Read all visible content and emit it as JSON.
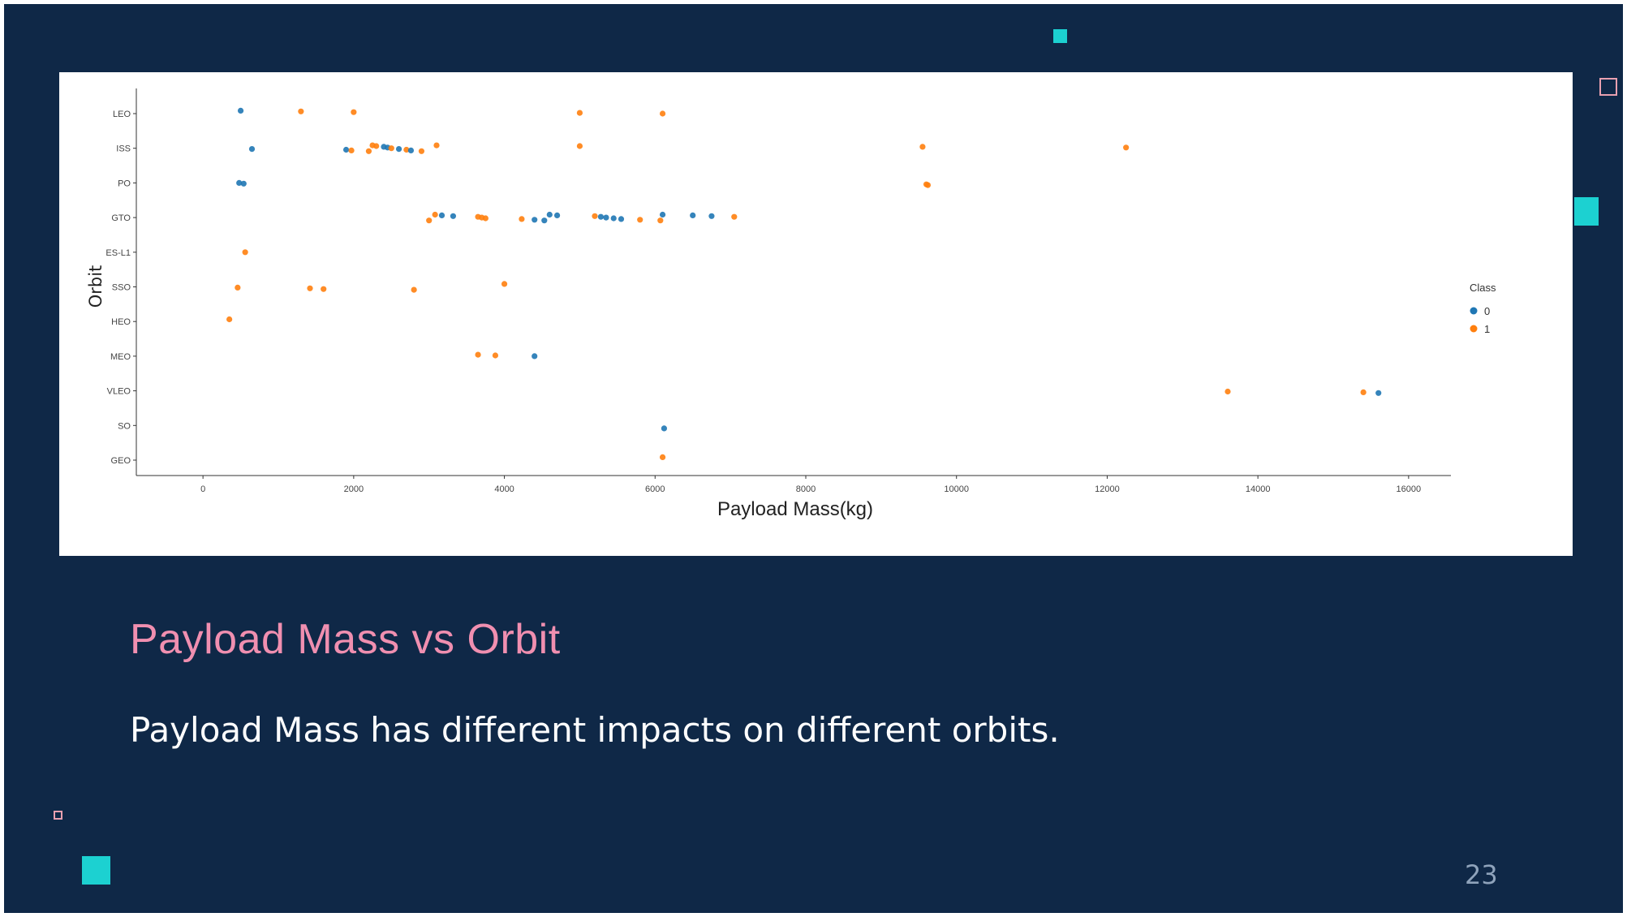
{
  "slide": {
    "title": "Payload Mass vs Orbit",
    "body": "Payload Mass has different impacts on different orbits.",
    "page_number": "23",
    "colors": {
      "background": "#0f2847",
      "accent_teal": "#1cd1d1",
      "accent_pink": "#f08fb0",
      "text": "#ffffff"
    }
  },
  "chart_data": {
    "type": "scatter",
    "xlabel": "Payload Mass(kg)",
    "ylabel": "Orbit",
    "xlim": [
      -400,
      16400
    ],
    "x_ticks": [
      0,
      2000,
      4000,
      6000,
      8000,
      10000,
      12000,
      14000,
      16000
    ],
    "categories": [
      "LEO",
      "ISS",
      "PO",
      "GTO",
      "ES-L1",
      "SSO",
      "HEO",
      "MEO",
      "VLEO",
      "SO",
      "GEO"
    ],
    "legend": {
      "title": "Class",
      "position": "right",
      "entries": [
        "0",
        "1"
      ]
    },
    "series_colors": {
      "0": "#1f77b4",
      "1": "#ff7f0e"
    },
    "points": [
      {
        "x": 500,
        "orbit": "LEO",
        "class": "0"
      },
      {
        "x": 1300,
        "orbit": "LEO",
        "class": "1"
      },
      {
        "x": 2000,
        "orbit": "LEO",
        "class": "1"
      },
      {
        "x": 5000,
        "orbit": "LEO",
        "class": "1"
      },
      {
        "x": 6100,
        "orbit": "LEO",
        "class": "1"
      },
      {
        "x": 650,
        "orbit": "ISS",
        "class": "0"
      },
      {
        "x": 1900,
        "orbit": "ISS",
        "class": "0"
      },
      {
        "x": 1970,
        "orbit": "ISS",
        "class": "1"
      },
      {
        "x": 2200,
        "orbit": "ISS",
        "class": "1"
      },
      {
        "x": 2250,
        "orbit": "ISS",
        "class": "1"
      },
      {
        "x": 2300,
        "orbit": "ISS",
        "class": "1"
      },
      {
        "x": 2400,
        "orbit": "ISS",
        "class": "0"
      },
      {
        "x": 2450,
        "orbit": "ISS",
        "class": "0"
      },
      {
        "x": 2500,
        "orbit": "ISS",
        "class": "1"
      },
      {
        "x": 2600,
        "orbit": "ISS",
        "class": "0"
      },
      {
        "x": 2700,
        "orbit": "ISS",
        "class": "1"
      },
      {
        "x": 2760,
        "orbit": "ISS",
        "class": "0"
      },
      {
        "x": 2900,
        "orbit": "ISS",
        "class": "1"
      },
      {
        "x": 3100,
        "orbit": "ISS",
        "class": "1"
      },
      {
        "x": 5000,
        "orbit": "ISS",
        "class": "1"
      },
      {
        "x": 9550,
        "orbit": "ISS",
        "class": "1"
      },
      {
        "x": 12250,
        "orbit": "ISS",
        "class": "1"
      },
      {
        "x": 480,
        "orbit": "PO",
        "class": "0"
      },
      {
        "x": 540,
        "orbit": "PO",
        "class": "0"
      },
      {
        "x": 9600,
        "orbit": "PO",
        "class": "1"
      },
      {
        "x": 9620,
        "orbit": "PO",
        "class": "1"
      },
      {
        "x": 3000,
        "orbit": "GTO",
        "class": "1"
      },
      {
        "x": 3080,
        "orbit": "GTO",
        "class": "1"
      },
      {
        "x": 3170,
        "orbit": "GTO",
        "class": "0"
      },
      {
        "x": 3320,
        "orbit": "GTO",
        "class": "0"
      },
      {
        "x": 3650,
        "orbit": "GTO",
        "class": "1"
      },
      {
        "x": 3700,
        "orbit": "GTO",
        "class": "1"
      },
      {
        "x": 3750,
        "orbit": "GTO",
        "class": "1"
      },
      {
        "x": 4230,
        "orbit": "GTO",
        "class": "1"
      },
      {
        "x": 4400,
        "orbit": "GTO",
        "class": "0"
      },
      {
        "x": 4530,
        "orbit": "GTO",
        "class": "0"
      },
      {
        "x": 4600,
        "orbit": "GTO",
        "class": "0"
      },
      {
        "x": 4700,
        "orbit": "GTO",
        "class": "0"
      },
      {
        "x": 5200,
        "orbit": "GTO",
        "class": "1"
      },
      {
        "x": 5280,
        "orbit": "GTO",
        "class": "0"
      },
      {
        "x": 5350,
        "orbit": "GTO",
        "class": "0"
      },
      {
        "x": 5450,
        "orbit": "GTO",
        "class": "0"
      },
      {
        "x": 5550,
        "orbit": "GTO",
        "class": "0"
      },
      {
        "x": 5800,
        "orbit": "GTO",
        "class": "1"
      },
      {
        "x": 6070,
        "orbit": "GTO",
        "class": "1"
      },
      {
        "x": 6100,
        "orbit": "GTO",
        "class": "0"
      },
      {
        "x": 6500,
        "orbit": "GTO",
        "class": "0"
      },
      {
        "x": 6750,
        "orbit": "GTO",
        "class": "0"
      },
      {
        "x": 7050,
        "orbit": "GTO",
        "class": "1"
      },
      {
        "x": 560,
        "orbit": "ES-L1",
        "class": "1"
      },
      {
        "x": 460,
        "orbit": "SSO",
        "class": "1"
      },
      {
        "x": 1420,
        "orbit": "SSO",
        "class": "1"
      },
      {
        "x": 1600,
        "orbit": "SSO",
        "class": "1"
      },
      {
        "x": 2800,
        "orbit": "SSO",
        "class": "1"
      },
      {
        "x": 4000,
        "orbit": "SSO",
        "class": "1"
      },
      {
        "x": 350,
        "orbit": "HEO",
        "class": "1"
      },
      {
        "x": 3650,
        "orbit": "MEO",
        "class": "1"
      },
      {
        "x": 3880,
        "orbit": "MEO",
        "class": "1"
      },
      {
        "x": 4400,
        "orbit": "MEO",
        "class": "0"
      },
      {
        "x": 13600,
        "orbit": "VLEO",
        "class": "1"
      },
      {
        "x": 15400,
        "orbit": "VLEO",
        "class": "1"
      },
      {
        "x": 15600,
        "orbit": "VLEO",
        "class": "0"
      },
      {
        "x": 6120,
        "orbit": "SO",
        "class": "0"
      },
      {
        "x": 6100,
        "orbit": "GEO",
        "class": "1"
      }
    ]
  }
}
